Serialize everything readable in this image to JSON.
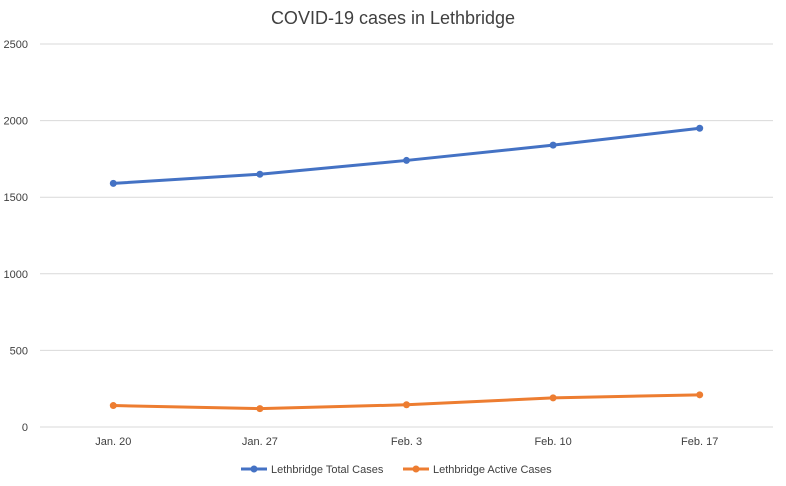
{
  "chart_data": {
    "type": "line",
    "title": "COVID-19 cases in Lethbridge",
    "xlabel": "",
    "ylabel": "",
    "categories": [
      "Jan. 20",
      "Jan. 27",
      "Feb. 3",
      "Feb. 10",
      "Feb. 17"
    ],
    "ylim": [
      0,
      2500
    ],
    "yticks": [
      0,
      500,
      1000,
      1500,
      2000,
      2500
    ],
    "grid": true,
    "legend_position": "bottom",
    "series": [
      {
        "name": "Lethbridge Total Cases",
        "color": "#4472c4",
        "values": [
          1590,
          1650,
          1740,
          1840,
          1950
        ]
      },
      {
        "name": "Lethbridge Active Cases",
        "color": "#ed7d31",
        "values": [
          140,
          120,
          145,
          190,
          210
        ]
      }
    ]
  }
}
